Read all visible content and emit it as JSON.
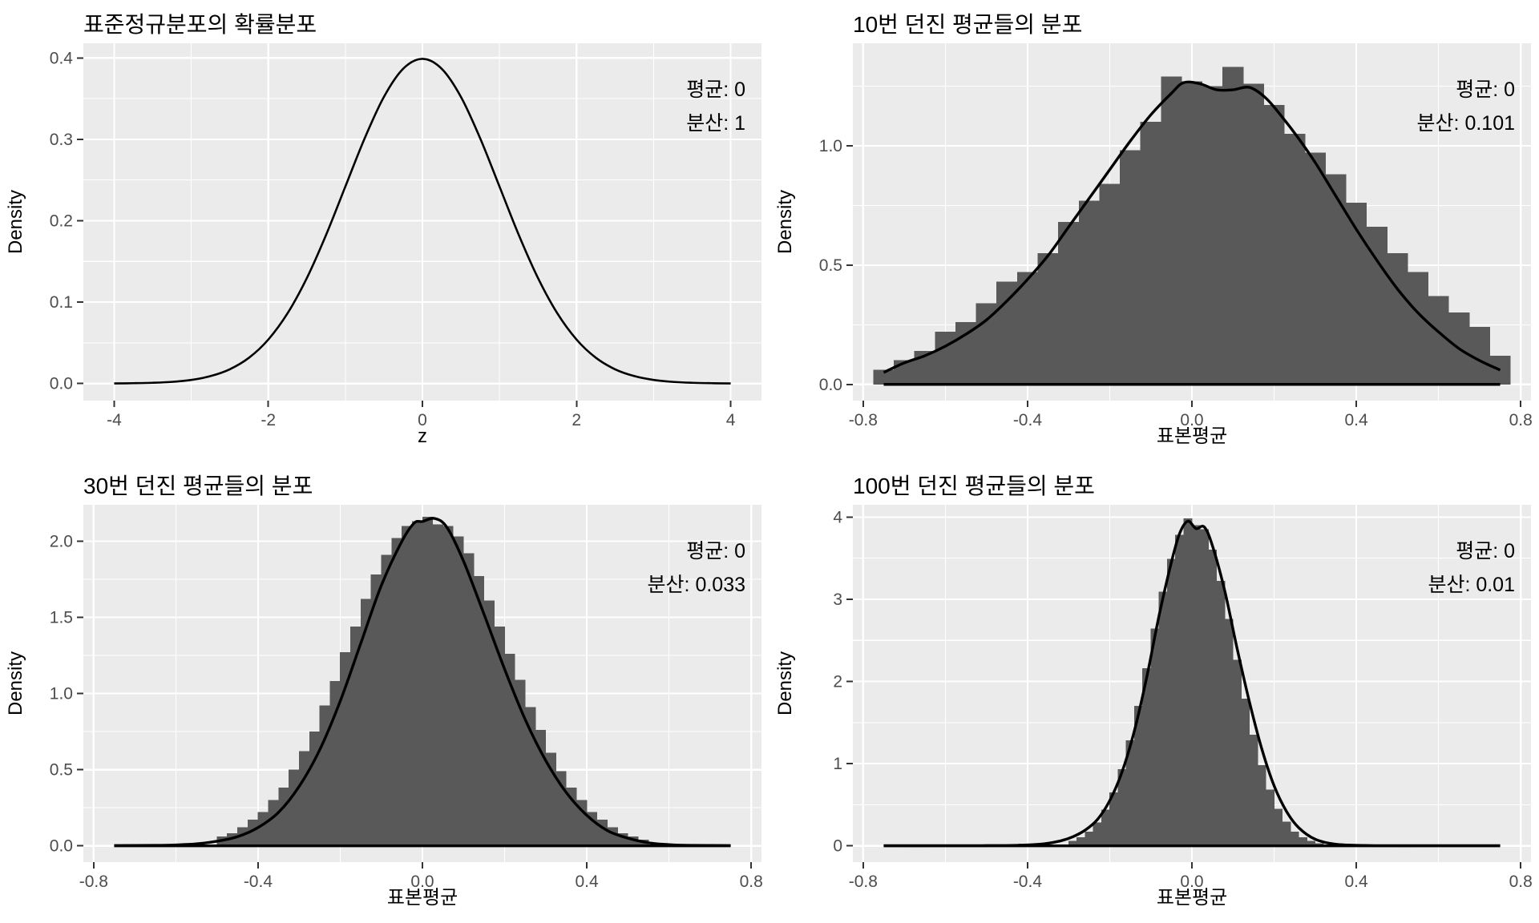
{
  "figure": {
    "background": "#FFFFFF",
    "panel_background": "#EBEBEB",
    "grid_major_color": "#FFFFFF",
    "grid_minor_color": "#FFFFFF",
    "bar_fill": "#595959",
    "curve_color": "#000000",
    "tick_color": "#333333",
    "tick_label_color": "#4D4D4D",
    "text_color": "#000000"
  },
  "chart_data": [
    {
      "id": "standard-normal",
      "type": "line",
      "title": "표준정규분포의 확률분포",
      "xlabel": "z",
      "ylabel": "Density",
      "annotation": [
        "평균: 0",
        "분산: 1"
      ],
      "xlim": [
        -4.4,
        4.4
      ],
      "ylim": [
        -0.021,
        0.418
      ],
      "xticks": {
        "values": [
          -4,
          -2,
          0,
          2,
          4
        ],
        "labels": [
          "-4",
          "-2",
          "0",
          "2",
          "4"
        ],
        "minor": [
          -3,
          -1,
          1,
          3
        ]
      },
      "yticks": {
        "values": [
          0,
          0.1,
          0.2,
          0.3,
          0.4
        ],
        "labels": [
          "0.0",
          "0.1",
          "0.2",
          "0.3",
          "0.4"
        ],
        "minor": [
          0.05,
          0.15,
          0.25,
          0.35
        ]
      },
      "curve": {
        "x": [
          -4,
          -3.75,
          -3.5,
          -3.25,
          -3,
          -2.75,
          -2.5,
          -2.25,
          -2,
          -1.75,
          -1.5,
          -1.25,
          -1,
          -0.75,
          -0.5,
          -0.25,
          0,
          0.25,
          0.5,
          0.75,
          1,
          1.25,
          1.5,
          1.75,
          2,
          2.25,
          2.5,
          2.75,
          3,
          3.25,
          3.5,
          3.75,
          4
        ],
        "y": [
          0.0001,
          0.0004,
          0.0009,
          0.002,
          0.0044,
          0.0091,
          0.0175,
          0.0317,
          0.054,
          0.0863,
          0.1295,
          0.1826,
          0.242,
          0.3011,
          0.3521,
          0.3867,
          0.3989,
          0.3867,
          0.3521,
          0.3011,
          0.242,
          0.1826,
          0.1295,
          0.0863,
          0.054,
          0.0317,
          0.0175,
          0.0091,
          0.0044,
          0.002,
          0.0009,
          0.0004,
          0.0001
        ]
      }
    },
    {
      "id": "mean-of-10-tosses",
      "type": "histogram",
      "title": "10번 던진 평균들의 분포",
      "xlabel": "표본평균",
      "ylabel": "Density",
      "annotation": [
        "평균: 0",
        "분산: 0.101"
      ],
      "xlim": [
        -0.825,
        0.825
      ],
      "ylim": [
        -0.068,
        1.43
      ],
      "xticks": {
        "values": [
          -0.8,
          -0.4,
          0,
          0.4,
          0.8
        ],
        "labels": [
          "-0.8",
          "-0.4",
          "0.0",
          "0.4",
          "0.8"
        ],
        "minor": [
          -0.6,
          -0.2,
          0.2,
          0.6
        ]
      },
      "yticks": {
        "values": [
          0,
          0.5,
          1.0
        ],
        "labels": [
          "0.0",
          "0.5",
          "1.0"
        ],
        "minor": [
          0.25,
          0.75,
          1.25
        ]
      },
      "bars": {
        "x0": -0.775,
        "binwidth": 0.05,
        "heights": [
          0.06,
          0.1,
          0.14,
          0.22,
          0.26,
          0.34,
          0.43,
          0.47,
          0.55,
          0.68,
          0.77,
          0.84,
          0.98,
          1.1,
          1.29,
          1.27,
          1.25,
          1.33,
          1.26,
          1.17,
          1.05,
          0.97,
          0.88,
          0.76,
          0.66,
          0.55,
          0.47,
          0.37,
          0.3,
          0.24,
          0.12
        ]
      },
      "curve": {
        "x": [
          -0.75,
          -0.7,
          -0.65,
          -0.6,
          -0.55,
          -0.5,
          -0.45,
          -0.4,
          -0.35,
          -0.3,
          -0.25,
          -0.2,
          -0.15,
          -0.1,
          -0.05,
          -0.02,
          0.02,
          0.06,
          0.1,
          0.14,
          0.18,
          0.22,
          0.26,
          0.3,
          0.35,
          0.4,
          0.45,
          0.5,
          0.55,
          0.6,
          0.65,
          0.7,
          0.75
        ],
        "y": [
          0.05,
          0.09,
          0.12,
          0.16,
          0.21,
          0.27,
          0.35,
          0.44,
          0.54,
          0.66,
          0.78,
          0.9,
          1.02,
          1.13,
          1.22,
          1.265,
          1.26,
          1.235,
          1.235,
          1.245,
          1.2,
          1.12,
          1.03,
          0.93,
          0.79,
          0.65,
          0.52,
          0.4,
          0.3,
          0.22,
          0.15,
          0.1,
          0.06
        ]
      }
    },
    {
      "id": "mean-of-30-tosses",
      "type": "histogram",
      "title": "30번 던진 평균들의 분포",
      "xlabel": "표본평균",
      "ylabel": "Density",
      "annotation": [
        "평균: 0",
        "분산: 0.033"
      ],
      "xlim": [
        -0.825,
        0.825
      ],
      "ylim": [
        -0.107,
        2.24
      ],
      "xticks": {
        "values": [
          -0.8,
          -0.4,
          0,
          0.4,
          0.8
        ],
        "labels": [
          "-0.8",
          "-0.4",
          "0.0",
          "0.4",
          "0.8"
        ],
        "minor": [
          -0.6,
          -0.2,
          0.2,
          0.6
        ]
      },
      "yticks": {
        "values": [
          0,
          0.5,
          1.0,
          1.5,
          2.0
        ],
        "labels": [
          "0.0",
          "0.5",
          "1.0",
          "1.5",
          "2.0"
        ],
        "minor": [
          0.25,
          0.75,
          1.25,
          1.75
        ]
      },
      "bars": {
        "x0": -0.5,
        "binwidth": 0.025,
        "heights": [
          0.06,
          0.08,
          0.12,
          0.17,
          0.22,
          0.3,
          0.38,
          0.5,
          0.62,
          0.75,
          0.92,
          1.08,
          1.27,
          1.44,
          1.62,
          1.78,
          1.91,
          2.02,
          2.1,
          2.13,
          2.16,
          2.11,
          2.1,
          2.03,
          1.92,
          1.77,
          1.61,
          1.44,
          1.26,
          1.09,
          0.91,
          0.76,
          0.61,
          0.49,
          0.38,
          0.3,
          0.22,
          0.17,
          0.12,
          0.08,
          0.06,
          0.04
        ]
      },
      "curve": {
        "x": [
          -0.75,
          -0.65,
          -0.6,
          -0.55,
          -0.5,
          -0.45,
          -0.4,
          -0.35,
          -0.3,
          -0.25,
          -0.2,
          -0.15,
          -0.1,
          -0.05,
          -0.02,
          0,
          0.03,
          0.06,
          0.1,
          0.15,
          0.2,
          0.25,
          0.3,
          0.35,
          0.4,
          0.45,
          0.5,
          0.55,
          0.6,
          0.65,
          0.75
        ],
        "y": [
          0.002,
          0.003,
          0.006,
          0.013,
          0.03,
          0.06,
          0.12,
          0.22,
          0.39,
          0.63,
          0.95,
          1.33,
          1.71,
          2.0,
          2.12,
          2.13,
          2.15,
          2.09,
          1.87,
          1.52,
          1.16,
          0.83,
          0.56,
          0.35,
          0.2,
          0.1,
          0.05,
          0.02,
          0.008,
          0.003,
          0.002
        ]
      }
    },
    {
      "id": "mean-of-100-tosses",
      "type": "histogram",
      "title": "100번 던진 평균들의 분포",
      "xlabel": "표본평균",
      "ylabel": "Density",
      "annotation": [
        "평균: 0",
        "분산: 0.01"
      ],
      "xlim": [
        -0.825,
        0.825
      ],
      "ylim": [
        -0.198,
        4.15
      ],
      "xticks": {
        "values": [
          -0.8,
          -0.4,
          0,
          0.4,
          0.8
        ],
        "labels": [
          "-0.8",
          "-0.4",
          "0.0",
          "0.4",
          "0.8"
        ],
        "minor": [
          -0.6,
          -0.2,
          0.2,
          0.6
        ]
      },
      "yticks": {
        "values": [
          0,
          1,
          2,
          3,
          4
        ],
        "labels": [
          "0",
          "1",
          "2",
          "3",
          "4"
        ],
        "minor": [
          0.5,
          1.5,
          2.5,
          3.5
        ]
      },
      "bars": {
        "x0": -0.3,
        "binwidth": 0.02,
        "heights": [
          0.06,
          0.1,
          0.17,
          0.28,
          0.44,
          0.65,
          0.93,
          1.28,
          1.7,
          2.16,
          2.64,
          3.09,
          3.49,
          3.78,
          3.98,
          3.9,
          3.85,
          3.6,
          3.22,
          2.76,
          2.26,
          1.79,
          1.35,
          0.98,
          0.68,
          0.45,
          0.29,
          0.17,
          0.1,
          0.06,
          0.03
        ]
      },
      "curve": {
        "x": [
          -0.75,
          -0.6,
          -0.5,
          -0.42,
          -0.36,
          -0.32,
          -0.29,
          -0.26,
          -0.23,
          -0.2,
          -0.17,
          -0.14,
          -0.11,
          -0.08,
          -0.05,
          -0.03,
          -0.01,
          0.01,
          0.03,
          0.05,
          0.08,
          0.11,
          0.14,
          0.17,
          0.2,
          0.23,
          0.26,
          0.3,
          0.35,
          0.42,
          0.5,
          0.6,
          0.75
        ],
        "y": [
          0.002,
          0.002,
          0.003,
          0.008,
          0.025,
          0.06,
          0.11,
          0.19,
          0.32,
          0.55,
          0.9,
          1.4,
          2.05,
          2.8,
          3.45,
          3.8,
          3.95,
          3.86,
          3.88,
          3.65,
          3.1,
          2.4,
          1.75,
          1.18,
          0.73,
          0.42,
          0.22,
          0.08,
          0.02,
          0.005,
          0.002,
          0.002,
          0.002
        ]
      }
    }
  ]
}
